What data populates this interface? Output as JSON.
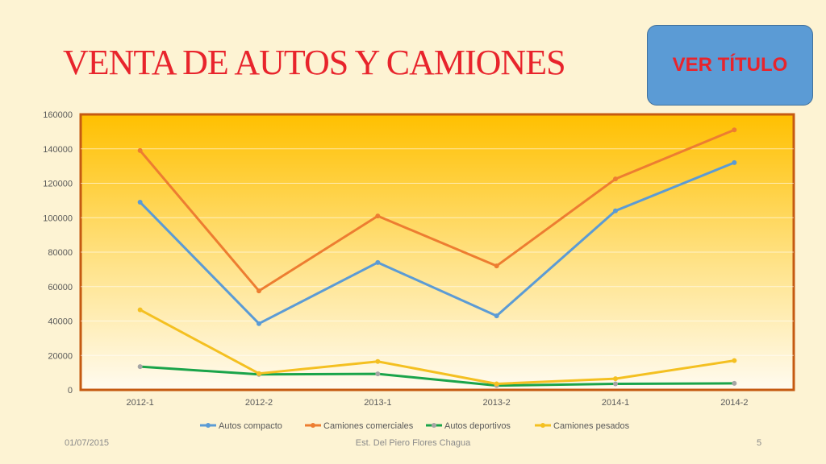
{
  "title": "VENTA DE AUTOS Y CAMIONES",
  "button": {
    "label": "VER TÍTULO"
  },
  "footer": {
    "date": "01/07/2015",
    "author": "Est. Del Piero Flores Chagua",
    "page": "5"
  },
  "chart_data": {
    "type": "line",
    "title": "",
    "xlabel": "",
    "ylabel": "",
    "categories": [
      "2012-1",
      "2012-2",
      "2013-1",
      "2013-2",
      "2014-1",
      "2014-2"
    ],
    "ylim": [
      0,
      160000
    ],
    "yticks": [
      0,
      20000,
      40000,
      60000,
      80000,
      100000,
      120000,
      140000,
      160000
    ],
    "grid": true,
    "legend_position": "bottom",
    "series": [
      {
        "name": "Autos compacto",
        "color": "#5b9bd5",
        "values": [
          109000,
          38500,
          74000,
          43000,
          104000,
          132000
        ]
      },
      {
        "name": "Camiones comerciales",
        "color": "#ed7d31",
        "values": [
          139000,
          57500,
          101000,
          72000,
          122500,
          151000
        ]
      },
      {
        "name": "Autos deportivos",
        "color": "#1aa44a",
        "marker_color": "#a5a5a5",
        "values": [
          13500,
          9000,
          9300,
          2500,
          3500,
          3800
        ]
      },
      {
        "name": "Camiones pesados",
        "color": "#f4c021",
        "values": [
          46500,
          9500,
          16500,
          3500,
          6500,
          17000
        ]
      }
    ]
  }
}
